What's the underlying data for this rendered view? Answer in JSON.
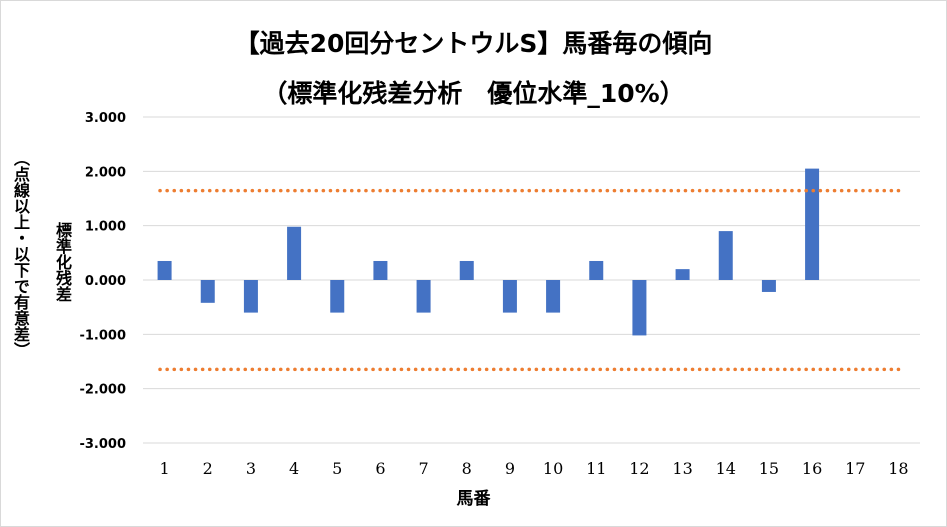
{
  "chart_data": {
    "type": "bar",
    "title": "【過去20回分セントウルS】馬番毎の傾向",
    "subtitle": "（標準化残差分析　優位水準_10%）",
    "xlabel": "馬番",
    "ylabel": "標準化残差",
    "ylabel_note": "（点線以上・以下で有意差）",
    "categories": [
      "1",
      "2",
      "3",
      "4",
      "5",
      "6",
      "7",
      "8",
      "9",
      "10",
      "11",
      "12",
      "13",
      "14",
      "15",
      "16",
      "17",
      "18"
    ],
    "values": [
      0.35,
      -0.42,
      -0.6,
      0.98,
      -0.6,
      0.35,
      -0.6,
      0.35,
      -0.6,
      -0.6,
      0.35,
      -1.02,
      0.2,
      0.9,
      -0.22,
      2.05,
      0,
      0
    ],
    "ylim": [
      -3.0,
      3.0
    ],
    "yticks": [
      "3.000",
      "2.000",
      "1.000",
      "0.000",
      "-1.000",
      "-2.000",
      "-3.000"
    ],
    "threshold_lines": [
      1.645,
      -1.645
    ],
    "bar_color": "#4472c4",
    "threshold_color": "#ed7d31",
    "gridline_color": "#d9d9d9",
    "grid": true,
    "legend": "none"
  }
}
